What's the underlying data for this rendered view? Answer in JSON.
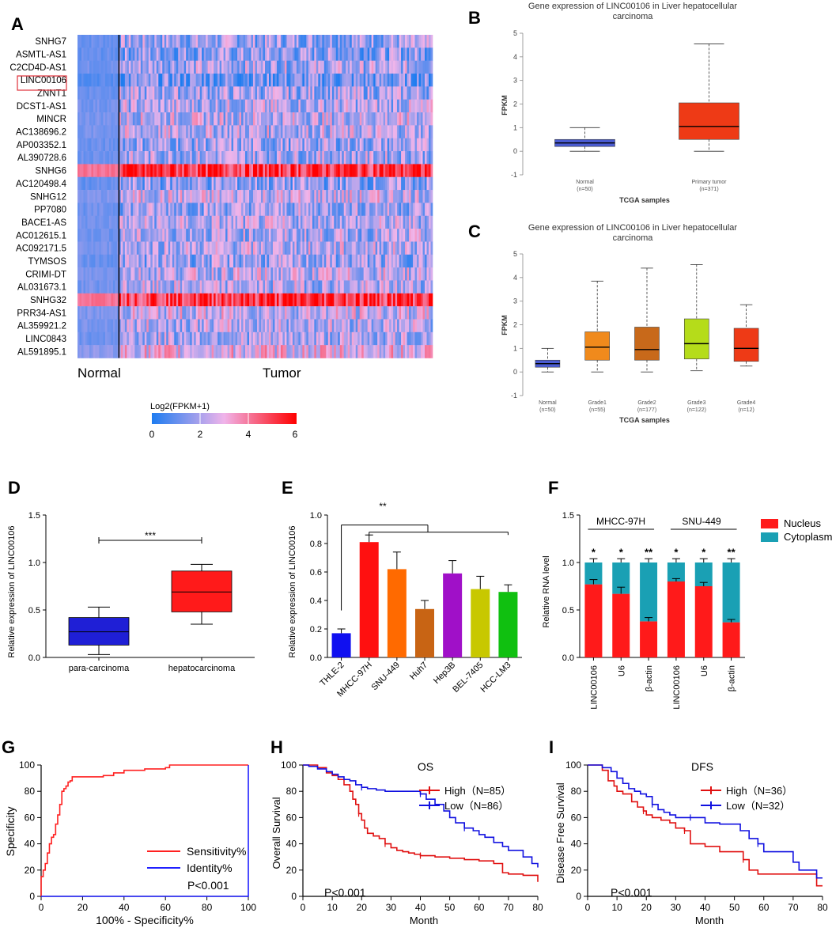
{
  "panel_labels": {
    "A": "A",
    "B": "B",
    "C": "C",
    "D": "D",
    "E": "E",
    "F": "F",
    "G": "G",
    "H": "H",
    "I": "I"
  },
  "chart_data": [
    {
      "panel": "A",
      "type": "heatmap",
      "rows": [
        "SNHG7",
        "ASMTL-AS1",
        "C2CD4D-AS1",
        "LINC00106",
        "ZNNT1",
        "DCST1-AS1",
        "MINCR",
        "AC138696.2",
        "AP003352.1",
        "AL390728.6",
        "SNHG6",
        "AC120498.4",
        "SNHG12",
        "PP7080",
        "BACE1-AS",
        "AC012615.1",
        "AC092171.5",
        "TYMSOS",
        "CRIMI-DT",
        "AL031673.1",
        "SNHG32",
        "PRR34-AS1",
        "AL359921.2",
        "LINC0843",
        "AL591895.1"
      ],
      "row_base_level": [
        1.8,
        1.6,
        2.0,
        1.2,
        1.9,
        2.1,
        2.3,
        2.2,
        1.8,
        2.0,
        5.2,
        1.6,
        2.4,
        1.9,
        2.1,
        2.0,
        2.2,
        1.8,
        2.3,
        2.1,
        5.2,
        2.4,
        2.2,
        2.0,
        2.8
      ],
      "highlighted_row": "LINC00106",
      "group_labels": [
        "Normal",
        "Tumor"
      ],
      "legend_title": "Log2(FPKM+1)",
      "legend_ticks": [
        "0",
        "2",
        "4",
        "6"
      ],
      "colorscale": [
        "#1e7cf0",
        "#f0b4ea",
        "#ff0000"
      ]
    },
    {
      "panel": "B",
      "type": "box",
      "title_line1": "Gene expression of LINC00106 in Liver hepatocellular",
      "title_line2": "carcinoma",
      "ylabel": "FPKM",
      "xlabel": "TCGA samples",
      "ylim": [
        -1,
        5
      ],
      "yticks": [
        "-1",
        "0",
        "1",
        "2",
        "3",
        "4",
        "5"
      ],
      "boxes": [
        {
          "label": "Normal",
          "n": "(n=50)",
          "min": 0.0,
          "q1": 0.2,
          "median": 0.35,
          "q3": 0.5,
          "max": 1.0,
          "color": "#4a5bd1"
        },
        {
          "label": "Primary tumor",
          "n": "(n=371)",
          "min": 0.0,
          "q1": 0.5,
          "median": 1.05,
          "q3": 2.05,
          "max": 4.55,
          "color": "#ee3a16"
        }
      ]
    },
    {
      "panel": "C",
      "type": "box",
      "title_line1": "Gene expression of LINC00106 in Liver hepatocellular",
      "title_line2": "carcinoma",
      "ylabel": "FPKM",
      "xlabel": "TCGA samples",
      "ylim": [
        -1,
        5
      ],
      "yticks": [
        "-1",
        "0",
        "1",
        "2",
        "3",
        "4",
        "5"
      ],
      "boxes": [
        {
          "label": "Normal",
          "n": "(n=50)",
          "min": 0.0,
          "q1": 0.2,
          "median": 0.35,
          "q3": 0.5,
          "max": 1.0,
          "color": "#4a5bd1"
        },
        {
          "label": "Grade1",
          "n": "(n=55)",
          "min": 0.0,
          "q1": 0.5,
          "median": 1.05,
          "q3": 1.7,
          "max": 3.85,
          "color": "#f08a1c"
        },
        {
          "label": "Grade2",
          "n": "(n=177)",
          "min": 0.0,
          "q1": 0.5,
          "median": 0.95,
          "q3": 1.9,
          "max": 4.4,
          "color": "#c8691a"
        },
        {
          "label": "Grade3",
          "n": "(n=122)",
          "min": 0.05,
          "q1": 0.55,
          "median": 1.2,
          "q3": 2.25,
          "max": 4.55,
          "color": "#b5dc1a"
        },
        {
          "label": "Grade4",
          "n": "(n=12)",
          "min": 0.25,
          "q1": 0.45,
          "median": 1.0,
          "q3": 1.85,
          "max": 2.85,
          "color": "#ee3a16"
        }
      ]
    },
    {
      "panel": "D",
      "type": "box",
      "ylabel": "Relative expression of LINC00106",
      "ylim": [
        0,
        1.5
      ],
      "yticks": [
        "0.0",
        "0.5",
        "1.0",
        "1.5"
      ],
      "significance": "***",
      "boxes": [
        {
          "label": "para-carcinoma",
          "min": 0.03,
          "q1": 0.13,
          "median": 0.27,
          "q3": 0.42,
          "max": 0.53,
          "color": "#1f1fd6"
        },
        {
          "label": "hepatocarcinoma",
          "min": 0.35,
          "q1": 0.48,
          "median": 0.69,
          "q3": 0.91,
          "max": 0.98,
          "color": "#ff1a1a"
        }
      ]
    },
    {
      "panel": "E",
      "type": "bar",
      "ylabel": "Relative expression of LINC00106",
      "ylim": [
        0,
        1.0
      ],
      "yticks": [
        "0.0",
        "0.2",
        "0.4",
        "0.6",
        "0.8",
        "1.0"
      ],
      "significance": "**",
      "categories": [
        "THLE-2",
        "MHCC-97H",
        "SNU-449",
        "Huh7",
        "Hep3B",
        "BEL-7405",
        "HCC-LM3"
      ],
      "values": [
        0.17,
        0.81,
        0.62,
        0.34,
        0.59,
        0.48,
        0.46
      ],
      "errors": [
        0.03,
        0.05,
        0.12,
        0.06,
        0.09,
        0.09,
        0.05
      ],
      "colors": [
        "#1010f0",
        "#ff1010",
        "#ff6a00",
        "#c86414",
        "#a010c8",
        "#c8c800",
        "#10c010"
      ]
    },
    {
      "panel": "F",
      "type": "bar",
      "stacked": true,
      "ylabel": "Relative RNA level",
      "ylim": [
        0,
        1.5
      ],
      "yticks": [
        "0.0",
        "0.5",
        "1.0",
        "1.5"
      ],
      "groups": [
        "MHCC-97H",
        "SNU-449"
      ],
      "categories": [
        "LINC00106",
        "U6",
        "β-actin",
        "LINC00106",
        "U6",
        "β-actin"
      ],
      "series": [
        {
          "name": "Nucleus",
          "values": [
            0.77,
            0.67,
            0.38,
            0.8,
            0.75,
            0.37
          ],
          "color": "#ff1a1a"
        },
        {
          "name": "Cytoplasm",
          "values": [
            0.23,
            0.33,
            0.62,
            0.2,
            0.25,
            0.63
          ],
          "color": "#1aa0b4"
        }
      ],
      "errors": [
        0.05,
        0.07,
        0.04,
        0.03,
        0.04,
        0.03
      ],
      "significance": [
        "*",
        "*",
        "**",
        "*",
        "*",
        "**"
      ]
    },
    {
      "panel": "G",
      "type": "line",
      "xlabel": "100% - Specificity%",
      "ylabel": "Specificity",
      "xlim": [
        0,
        100
      ],
      "ylim": [
        0,
        100
      ],
      "xticks": [
        "0",
        "20",
        "40",
        "60",
        "80",
        "100"
      ],
      "yticks": [
        "0",
        "20",
        "40",
        "60",
        "80",
        "100"
      ],
      "annotation": "P<0.001",
      "series": [
        {
          "name": "Sensitivity%",
          "color": "#ff2020",
          "x": [
            0,
            0,
            1,
            2,
            2,
            3,
            3,
            4,
            4,
            5,
            6,
            7,
            7,
            8,
            9,
            10,
            10,
            11,
            12,
            13,
            14,
            15,
            17,
            20,
            25,
            30,
            35,
            40,
            45,
            50,
            55,
            60,
            62,
            65,
            70,
            80,
            90,
            100
          ],
          "y": [
            0,
            15,
            20,
            22,
            25,
            28,
            33,
            35,
            40,
            45,
            47,
            50,
            55,
            62,
            70,
            72,
            80,
            82,
            84,
            87,
            88,
            91,
            91,
            91,
            91,
            92,
            94,
            96,
            96,
            97,
            97,
            98,
            100,
            100,
            100,
            100,
            100,
            100
          ]
        },
        {
          "name": "Identity%",
          "color": "#2020ff",
          "x": [
            0,
            100
          ],
          "y": [
            0,
            100
          ]
        }
      ]
    },
    {
      "panel": "H",
      "type": "line",
      "title": "OS",
      "xlabel": "Month",
      "ylabel": "Overall Survival",
      "xlim": [
        0,
        80
      ],
      "ylim": [
        0,
        100
      ],
      "xticks": [
        "0",
        "10",
        "20",
        "30",
        "40",
        "50",
        "60",
        "70",
        "80"
      ],
      "yticks": [
        "0",
        "20",
        "40",
        "60",
        "80",
        "100"
      ],
      "annotation": "P<0.001",
      "series": [
        {
          "name": "High（N=85）",
          "color": "#e01010",
          "x": [
            0,
            5,
            8,
            10,
            12,
            14,
            16,
            17,
            18,
            19,
            20,
            21,
            22,
            23,
            24,
            26,
            28,
            30,
            32,
            34,
            36,
            38,
            40,
            45,
            50,
            55,
            60,
            65,
            68,
            70,
            75,
            80
          ],
          "y": [
            100,
            98,
            94,
            92,
            89,
            85,
            80,
            74,
            70,
            63,
            58,
            52,
            48,
            48,
            46,
            44,
            40,
            37,
            35,
            34,
            33,
            32,
            31,
            30,
            29,
            28,
            27,
            25,
            18,
            17,
            16,
            11
          ]
        },
        {
          "name": "Low（N=86）",
          "color": "#1010e0",
          "x": [
            0,
            2,
            5,
            8,
            10,
            12,
            14,
            16,
            18,
            20,
            22,
            25,
            28,
            30,
            35,
            40,
            42,
            45,
            48,
            50,
            52,
            55,
            58,
            60,
            62,
            65,
            68,
            70,
            75,
            78,
            80
          ],
          "y": [
            100,
            99,
            97,
            95,
            93,
            91,
            89,
            88,
            85,
            83,
            82,
            81,
            80,
            80,
            80,
            78,
            74,
            70,
            65,
            60,
            56,
            52,
            50,
            47,
            45,
            41,
            38,
            35,
            30,
            25,
            22
          ]
        }
      ]
    },
    {
      "panel": "I",
      "type": "line",
      "title": "DFS",
      "xlabel": "Month",
      "ylabel": "Disease Free Survival",
      "xlim": [
        0,
        80
      ],
      "ylim": [
        0,
        100
      ],
      "xticks": [
        "0",
        "10",
        "20",
        "30",
        "40",
        "50",
        "60",
        "70",
        "80"
      ],
      "yticks": [
        "0",
        "20",
        "40",
        "60",
        "80",
        "100"
      ],
      "annotation": "P<0.001",
      "series": [
        {
          "name": "High（N=36）",
          "color": "#e01010",
          "x": [
            0,
            5,
            7,
            9,
            10,
            12,
            15,
            17,
            19,
            20,
            22,
            25,
            28,
            30,
            33,
            35,
            38,
            40,
            45,
            50,
            53,
            55,
            58,
            60,
            65,
            70,
            75,
            78,
            80
          ],
          "y": [
            100,
            96,
            88,
            84,
            80,
            78,
            72,
            68,
            65,
            62,
            60,
            58,
            56,
            52,
            50,
            40,
            40,
            38,
            34,
            34,
            28,
            20,
            17,
            17,
            17,
            17,
            17,
            8,
            8
          ]
        },
        {
          "name": "Low（N=32）",
          "color": "#1010e0",
          "x": [
            0,
            5,
            8,
            10,
            12,
            14,
            16,
            18,
            20,
            22,
            24,
            26,
            28,
            30,
            32,
            35,
            40,
            45,
            50,
            52,
            55,
            58,
            60,
            62,
            65,
            70,
            72,
            75,
            78,
            80
          ],
          "y": [
            100,
            98,
            95,
            90,
            86,
            82,
            80,
            78,
            76,
            70,
            66,
            64,
            62,
            60,
            60,
            60,
            56,
            55,
            55,
            50,
            44,
            40,
            34,
            34,
            34,
            26,
            20,
            20,
            14,
            14
          ]
        }
      ]
    }
  ]
}
